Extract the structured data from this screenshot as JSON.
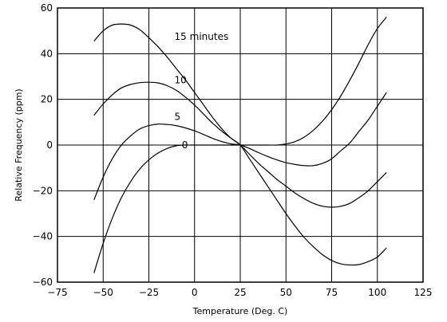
{
  "chart_data": {
    "type": "line",
    "title": "",
    "xlabel": "Temperature (Deg. C)",
    "ylabel": "Relative Frequency (ppm)",
    "xlim": [
      -75,
      125
    ],
    "ylim": [
      -60,
      60
    ],
    "xticks": [
      -75,
      -50,
      -25,
      0,
      25,
      50,
      75,
      100,
      125
    ],
    "yticks": [
      -60,
      -40,
      -20,
      0,
      20,
      40,
      60
    ],
    "xtick_labels": [
      "−75",
      "−50",
      "−25",
      "0",
      "25",
      "50",
      "75",
      "100",
      "125"
    ],
    "ytick_labels": [
      "−60",
      "−40",
      "−20",
      "0",
      "20",
      "40",
      "60"
    ],
    "grid": true,
    "legend": "none",
    "x": [
      -55,
      -50,
      -45,
      -40,
      -35,
      -30,
      -25,
      -20,
      -15,
      -10,
      -5,
      0,
      5,
      10,
      15,
      20,
      25,
      30,
      35,
      40,
      45,
      50,
      55,
      60,
      65,
      70,
      75,
      80,
      85,
      90,
      95,
      100,
      105
    ],
    "series": [
      {
        "name": "0",
        "color": "#000000",
        "values": [
          -56,
          -43,
          -32,
          -23,
          -16,
          -10.5,
          -6.5,
          -3.5,
          -1.5,
          -0.3,
          0,
          0,
          0,
          0,
          0,
          0,
          0,
          0,
          0,
          0,
          0,
          0.5,
          1.5,
          3.5,
          6.5,
          10.5,
          15.5,
          21.5,
          28.5,
          36,
          44,
          51,
          56
        ]
      },
      {
        "name": "5",
        "color": "#000000",
        "values": [
          -24,
          -14,
          -6,
          0,
          4,
          7,
          8.5,
          9.2,
          9,
          8.5,
          7.5,
          6.2,
          4.6,
          2.9,
          1.5,
          0.5,
          0,
          -1.5,
          -3.3,
          -5,
          -6.5,
          -7.7,
          -8.5,
          -9,
          -9,
          -8,
          -6,
          -2.5,
          1,
          6,
          11,
          17,
          23
        ]
      },
      {
        "name": "10",
        "color": "#000000",
        "values": [
          13,
          18,
          22,
          25,
          26.5,
          27.3,
          27.5,
          27.2,
          26,
          24,
          21,
          17.5,
          13.5,
          9.5,
          6,
          3,
          0,
          -4,
          -8,
          -11.5,
          -15,
          -18,
          -21,
          -23.5,
          -25.5,
          -26.8,
          -27.2,
          -26.8,
          -25.5,
          -23,
          -20,
          -16,
          -12
        ]
      },
      {
        "name": "15 minutes",
        "color": "#000000",
        "values": [
          45.5,
          50,
          52.5,
          53,
          52.5,
          50.5,
          47,
          43,
          38.5,
          33.5,
          28.5,
          23,
          17.5,
          12,
          7,
          3,
          0,
          -6,
          -12,
          -18,
          -24,
          -30,
          -35.5,
          -40.5,
          -44.5,
          -48,
          -50.5,
          -52,
          -52.5,
          -52.3,
          -51,
          -49,
          -45
        ]
      }
    ]
  }
}
